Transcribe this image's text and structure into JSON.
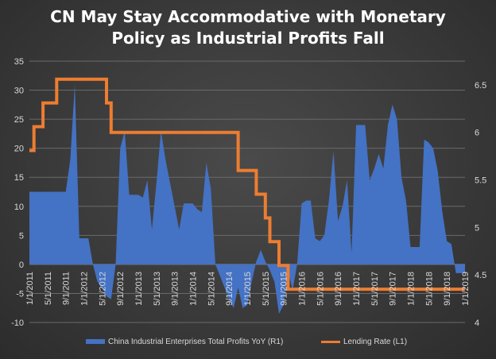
{
  "title_line1": "CN May Stay Accommodative with Monetary",
  "title_line2": "Policy as Industrial Profits Fall",
  "chart_data": {
    "type": "area",
    "title": "CN May Stay Accommodative with Monetary Policy as Industrial Profits Fall",
    "x_ticks": [
      "1/1/2011",
      "5/1/2011",
      "9/1/2011",
      "1/1/2012",
      "5/1/2012",
      "9/1/2012",
      "1/1/2013",
      "5/1/2013",
      "9/1/2013",
      "1/1/2014",
      "5/1/2014",
      "9/1/2014",
      "1/1/2015",
      "5/1/2015",
      "9/1/2015",
      "1/1/2016",
      "5/1/2016",
      "9/1/2016",
      "1/1/2017",
      "5/1/2017",
      "9/1/2017",
      "1/1/2018",
      "5/1/2018",
      "9/1/2018",
      "1/1/2019"
    ],
    "x_range": [
      "2011-01",
      "2019-01"
    ],
    "y_left": {
      "ticks": [
        "4",
        "4.5",
        "5",
        "5.5",
        "6",
        "6.5"
      ],
      "range": [
        4,
        6.75
      ],
      "label": ""
    },
    "y_right": {
      "ticks": [
        "35",
        "30",
        "25",
        "20",
        "15",
        "10",
        "5",
        "0",
        "-5",
        "-10"
      ],
      "range": [
        -10,
        35
      ],
      "label": ""
    },
    "grid": "horizontal",
    "legend_position": "bottom",
    "series": [
      {
        "name": "China Industrial Enterprises Total Profits YoY (R1)",
        "kind": "area",
        "color": "#4472c4",
        "points": [
          [
            "2011-01",
            12.5
          ],
          [
            "2011-02",
            12.5
          ],
          [
            "2011-03",
            12.5
          ],
          [
            "2011-04",
            12.5
          ],
          [
            "2011-05",
            12.5
          ],
          [
            "2011-06",
            12.5
          ],
          [
            "2011-07",
            12.5
          ],
          [
            "2011-08",
            12.5
          ],
          [
            "2011-09",
            12.5
          ],
          [
            "2011-10",
            18
          ],
          [
            "2011-11",
            31
          ],
          [
            "2011-12",
            4.5
          ],
          [
            "2012-01",
            4.5
          ],
          [
            "2012-02",
            4.5
          ],
          [
            "2012-03",
            0
          ],
          [
            "2012-04",
            -3
          ],
          [
            "2012-05",
            -4
          ],
          [
            "2012-06",
            -5.5
          ],
          [
            "2012-07",
            -6
          ],
          [
            "2012-08",
            0
          ],
          [
            "2012-09",
            20
          ],
          [
            "2012-10",
            23
          ],
          [
            "2012-11",
            12
          ],
          [
            "2012-12",
            12
          ],
          [
            "2013-01",
            12
          ],
          [
            "2013-02",
            11.5
          ],
          [
            "2013-03",
            14.5
          ],
          [
            "2013-04",
            6
          ],
          [
            "2013-05",
            14
          ],
          [
            "2013-06",
            23
          ],
          [
            "2013-07",
            18
          ],
          [
            "2013-08",
            14
          ],
          [
            "2013-09",
            10
          ],
          [
            "2013-10",
            6
          ],
          [
            "2013-11",
            10.5
          ],
          [
            "2013-12",
            10.5
          ],
          [
            "2014-01",
            10.5
          ],
          [
            "2014-02",
            9.5
          ],
          [
            "2014-03",
            9
          ],
          [
            "2014-04",
            17.5
          ],
          [
            "2014-05",
            13
          ],
          [
            "2014-06",
            0
          ],
          [
            "2014-07",
            -2
          ],
          [
            "2014-08",
            -4
          ],
          [
            "2014-09",
            -6
          ],
          [
            "2014-10",
            -7.5
          ],
          [
            "2014-11",
            -4
          ],
          [
            "2014-12",
            -7.5
          ],
          [
            "2015-01",
            -7
          ],
          [
            "2015-02",
            -3
          ],
          [
            "2015-03",
            0.5
          ],
          [
            "2015-04",
            2.5
          ],
          [
            "2015-05",
            0.5
          ],
          [
            "2015-06",
            -1
          ],
          [
            "2015-07",
            -3
          ],
          [
            "2015-08",
            -8.5
          ],
          [
            "2015-09",
            -7
          ],
          [
            "2015-10",
            -1
          ],
          [
            "2015-11",
            -4.5
          ],
          [
            "2015-12",
            0
          ],
          [
            "2016-01",
            10.5
          ],
          [
            "2016-02",
            11
          ],
          [
            "2016-03",
            11
          ],
          [
            "2016-04",
            4.5
          ],
          [
            "2016-05",
            4
          ],
          [
            "2016-06",
            5
          ],
          [
            "2016-07",
            11
          ],
          [
            "2016-08",
            19.5
          ],
          [
            "2016-09",
            7.5
          ],
          [
            "2016-10",
            10
          ],
          [
            "2016-11",
            14.5
          ],
          [
            "2016-12",
            2
          ],
          [
            "2017-01",
            24
          ],
          [
            "2017-02",
            24
          ],
          [
            "2017-03",
            24
          ],
          [
            "2017-04",
            14.5
          ],
          [
            "2017-05",
            16.5
          ],
          [
            "2017-06",
            19
          ],
          [
            "2017-07",
            16.5
          ],
          [
            "2017-08",
            24
          ],
          [
            "2017-09",
            27.5
          ],
          [
            "2017-10",
            25
          ],
          [
            "2017-11",
            15
          ],
          [
            "2017-12",
            11
          ],
          [
            "2018-01",
            3
          ],
          [
            "2018-02",
            3
          ],
          [
            "2018-03",
            3
          ],
          [
            "2018-04",
            21.5
          ],
          [
            "2018-05",
            21
          ],
          [
            "2018-06",
            20
          ],
          [
            "2018-07",
            16
          ],
          [
            "2018-08",
            9
          ],
          [
            "2018-09",
            4
          ],
          [
            "2018-10",
            3.5
          ],
          [
            "2018-11",
            -1.5
          ],
          [
            "2018-12",
            -1.5
          ],
          [
            "2019-01",
            -1.5
          ]
        ]
      },
      {
        "name": "Lending Rate (L1)",
        "kind": "line",
        "color": "#ed7d31",
        "points": [
          [
            "2011-01",
            5.81
          ],
          [
            "2011-02",
            6.06
          ],
          [
            "2011-03",
            6.06
          ],
          [
            "2011-04",
            6.31
          ],
          [
            "2011-05",
            6.31
          ],
          [
            "2011-06",
            6.31
          ],
          [
            "2011-07",
            6.56
          ],
          [
            "2011-08",
            6.56
          ],
          [
            "2011-09",
            6.56
          ],
          [
            "2011-10",
            6.56
          ],
          [
            "2011-11",
            6.56
          ],
          [
            "2011-12",
            6.56
          ],
          [
            "2012-01",
            6.56
          ],
          [
            "2012-02",
            6.56
          ],
          [
            "2012-03",
            6.56
          ],
          [
            "2012-04",
            6.56
          ],
          [
            "2012-05",
            6.56
          ],
          [
            "2012-06",
            6.31
          ],
          [
            "2012-07",
            6.0
          ],
          [
            "2012-08",
            6.0
          ],
          [
            "2012-09",
            6.0
          ],
          [
            "2012-10",
            6.0
          ],
          [
            "2012-11",
            6.0
          ],
          [
            "2012-12",
            6.0
          ],
          [
            "2013-01",
            6.0
          ],
          [
            "2013-02",
            6.0
          ],
          [
            "2013-03",
            6.0
          ],
          [
            "2013-04",
            6.0
          ],
          [
            "2013-05",
            6.0
          ],
          [
            "2013-06",
            6.0
          ],
          [
            "2013-07",
            6.0
          ],
          [
            "2013-08",
            6.0
          ],
          [
            "2013-09",
            6.0
          ],
          [
            "2013-10",
            6.0
          ],
          [
            "2013-11",
            6.0
          ],
          [
            "2013-12",
            6.0
          ],
          [
            "2014-01",
            6.0
          ],
          [
            "2014-02",
            6.0
          ],
          [
            "2014-03",
            6.0
          ],
          [
            "2014-04",
            6.0
          ],
          [
            "2014-05",
            6.0
          ],
          [
            "2014-06",
            6.0
          ],
          [
            "2014-07",
            6.0
          ],
          [
            "2014-08",
            6.0
          ],
          [
            "2014-09",
            6.0
          ],
          [
            "2014-10",
            6.0
          ],
          [
            "2014-11",
            5.6
          ],
          [
            "2014-12",
            5.6
          ],
          [
            "2015-01",
            5.6
          ],
          [
            "2015-02",
            5.6
          ],
          [
            "2015-03",
            5.35
          ],
          [
            "2015-04",
            5.35
          ],
          [
            "2015-05",
            5.1
          ],
          [
            "2015-06",
            4.85
          ],
          [
            "2015-07",
            4.85
          ],
          [
            "2015-08",
            4.6
          ],
          [
            "2015-09",
            4.6
          ],
          [
            "2015-10",
            4.35
          ],
          [
            "2015-11",
            4.35
          ],
          [
            "2015-12",
            4.35
          ],
          [
            "2016-01",
            4.35
          ],
          [
            "2016-06",
            4.35
          ],
          [
            "2016-12",
            4.35
          ],
          [
            "2017-06",
            4.35
          ],
          [
            "2017-12",
            4.35
          ],
          [
            "2018-06",
            4.35
          ],
          [
            "2018-12",
            4.35
          ],
          [
            "2019-01",
            4.35
          ]
        ]
      }
    ]
  },
  "legend": {
    "area_label": "China Industrial Enterprises Total Profits YoY (R1)",
    "line_label": "Lending Rate (L1)"
  }
}
